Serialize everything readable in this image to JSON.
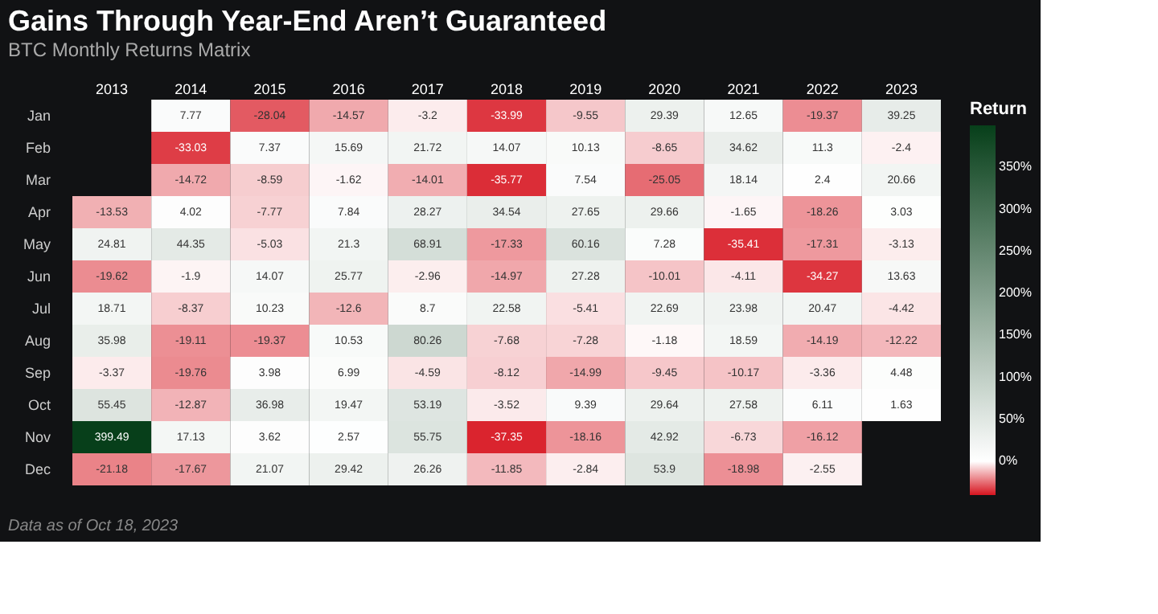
{
  "chart_data": {
    "type": "heatmap",
    "title": "Gains Through Year-End Aren’t Guaranteed",
    "subtitle": "BTC Monthly Returns Matrix",
    "legend_title": "Return",
    "categories": [
      "2013",
      "2014",
      "2015",
      "2016",
      "2017",
      "2018",
      "2019",
      "2020",
      "2021",
      "2022",
      "2023"
    ],
    "y_categories": [
      "Jan",
      "Feb",
      "Mar",
      "Apr",
      "May",
      "Jun",
      "Jul",
      "Aug",
      "Sep",
      "Oct",
      "Nov",
      "Dec"
    ],
    "cells": [
      [
        null,
        7.77,
        -28.04,
        -14.57,
        -3.2,
        -33.99,
        -9.55,
        29.39,
        12.65,
        -19.37,
        39.25
      ],
      [
        null,
        -33.03,
        7.37,
        15.69,
        21.72,
        14.07,
        10.13,
        -8.65,
        34.62,
        11.3,
        -2.4
      ],
      [
        null,
        -14.72,
        -8.59,
        -1.62,
        -14.01,
        -35.77,
        7.54,
        -25.05,
        18.14,
        2.4,
        20.66
      ],
      [
        -13.53,
        4.02,
        -7.77,
        7.84,
        28.27,
        34.54,
        27.65,
        29.66,
        -1.65,
        -18.26,
        3.03
      ],
      [
        24.81,
        44.35,
        -5.03,
        21.3,
        68.91,
        -17.33,
        60.16,
        7.28,
        -35.41,
        -17.31,
        -3.13
      ],
      [
        -19.62,
        -1.9,
        14.07,
        25.77,
        -2.96,
        -14.97,
        27.28,
        -10.01,
        -4.11,
        -34.27,
        13.63
      ],
      [
        18.71,
        -8.37,
        10.23,
        -12.6,
        8.7,
        22.58,
        -5.41,
        22.69,
        23.98,
        20.47,
        -4.42
      ],
      [
        35.98,
        -19.11,
        -19.37,
        10.53,
        80.26,
        -7.68,
        -7.28,
        -1.18,
        18.59,
        -14.19,
        -12.22
      ],
      [
        -3.37,
        -19.76,
        3.98,
        6.99,
        -4.59,
        -8.12,
        -14.99,
        -9.45,
        -10.17,
        -3.36,
        4.48
      ],
      [
        55.45,
        -12.87,
        36.98,
        19.47,
        53.19,
        -3.52,
        9.39,
        29.64,
        27.58,
        6.11,
        1.63
      ],
      [
        399.49,
        17.13,
        3.62,
        2.57,
        55.75,
        -37.35,
        -18.16,
        42.92,
        -6.73,
        -16.12,
        null
      ],
      [
        -21.18,
        -17.67,
        21.07,
        29.42,
        26.26,
        -11.85,
        -2.84,
        53.9,
        -18.98,
        -2.55,
        null
      ]
    ],
    "clim": [
      -40,
      400
    ],
    "cticks": [
      {
        "value": 0,
        "label": "0%"
      },
      {
        "value": 50,
        "label": "50%"
      },
      {
        "value": 100,
        "label": "100%"
      },
      {
        "value": 150,
        "label": "150%"
      },
      {
        "value": 200,
        "label": "200%"
      },
      {
        "value": 250,
        "label": "250%"
      },
      {
        "value": 300,
        "label": "300%"
      },
      {
        "value": 350,
        "label": "350%"
      }
    ],
    "data_labels": true,
    "annotations": [
      "Data as of Oct 18, 2023"
    ]
  }
}
